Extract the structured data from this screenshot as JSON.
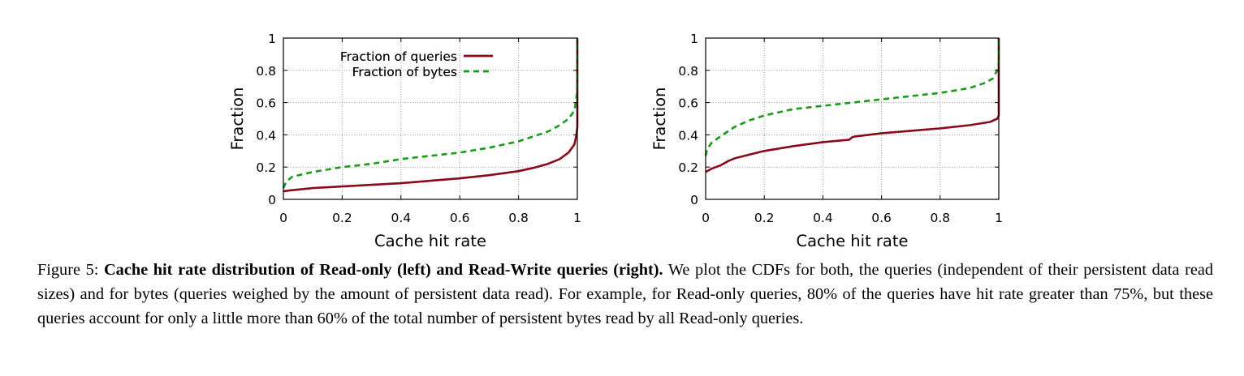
{
  "chart_data": [
    {
      "type": "line",
      "xlabel": "Cache hit rate",
      "ylabel": "Fraction",
      "xlim": [
        0,
        1
      ],
      "ylim": [
        0,
        1
      ],
      "xticks": [
        "0",
        "0.2",
        "0.4",
        "0.6",
        "0.8",
        "1"
      ],
      "yticks": [
        "0",
        "0.2",
        "0.4",
        "0.6",
        "0.8",
        "1"
      ],
      "grid": true,
      "legend_position": "top-center",
      "series": [
        {
          "name": "Fraction of queries",
          "color": "#8b0a1a",
          "style": "solid",
          "x": [
            0,
            0.02,
            0.1,
            0.2,
            0.3,
            0.4,
            0.5,
            0.6,
            0.7,
            0.8,
            0.85,
            0.9,
            0.94,
            0.97,
            0.99,
            0.997,
            1,
            1
          ],
          "y": [
            0.05,
            0.055,
            0.07,
            0.08,
            0.09,
            0.1,
            0.115,
            0.13,
            0.15,
            0.175,
            0.195,
            0.22,
            0.25,
            0.29,
            0.34,
            0.4,
            0.45,
            1.0
          ]
        },
        {
          "name": "Fraction of bytes",
          "color": "#1a9a1a",
          "style": "dashed",
          "x": [
            0,
            0.01,
            0.03,
            0.1,
            0.2,
            0.3,
            0.4,
            0.5,
            0.6,
            0.7,
            0.8,
            0.85,
            0.9,
            0.94,
            0.97,
            0.99,
            0.998,
            1,
            1
          ],
          "y": [
            0.07,
            0.11,
            0.14,
            0.17,
            0.2,
            0.22,
            0.25,
            0.27,
            0.29,
            0.32,
            0.36,
            0.39,
            0.42,
            0.46,
            0.5,
            0.55,
            0.65,
            0.72,
            1.0
          ]
        }
      ]
    },
    {
      "type": "line",
      "xlabel": "Cache hit rate",
      "ylabel": "Fraction",
      "xlim": [
        0,
        1
      ],
      "ylim": [
        0,
        1
      ],
      "xticks": [
        "0",
        "0.2",
        "0.4",
        "0.6",
        "0.8",
        "1"
      ],
      "yticks": [
        "0",
        "0.2",
        "0.4",
        "0.6",
        "0.8",
        "1"
      ],
      "grid": true,
      "legend_position": "top-center",
      "series": [
        {
          "name": "Fraction of queries",
          "color": "#8b0a1a",
          "style": "solid",
          "x": [
            0,
            0.02,
            0.05,
            0.08,
            0.1,
            0.2,
            0.3,
            0.4,
            0.49,
            0.5,
            0.51,
            0.6,
            0.7,
            0.8,
            0.9,
            0.97,
            0.995,
            1,
            1
          ],
          "y": [
            0.17,
            0.19,
            0.21,
            0.24,
            0.255,
            0.3,
            0.33,
            0.355,
            0.37,
            0.385,
            0.39,
            0.41,
            0.425,
            0.44,
            0.46,
            0.48,
            0.5,
            0.52,
            1.0
          ]
        },
        {
          "name": "Fraction of bytes",
          "color": "#1a9a1a",
          "style": "dashed",
          "x": [
            0,
            0.005,
            0.02,
            0.05,
            0.1,
            0.15,
            0.2,
            0.3,
            0.4,
            0.5,
            0.6,
            0.7,
            0.8,
            0.9,
            0.95,
            0.98,
            0.995,
            1,
            1
          ],
          "y": [
            0.27,
            0.31,
            0.35,
            0.39,
            0.45,
            0.49,
            0.52,
            0.56,
            0.58,
            0.6,
            0.62,
            0.64,
            0.66,
            0.69,
            0.72,
            0.75,
            0.8,
            0.85,
            1.0
          ]
        }
      ]
    }
  ],
  "caption": {
    "label": "Figure 5: ",
    "bold": "Cache hit rate distribution of Read-only (left) and Read-Write queries (right).",
    "body": " We plot the CDFs for both, the queries (independent of their persistent data read sizes) and for bytes (queries weighed by the amount of persistent data read). For example, for Read-only queries, 80% of the queries have hit rate greater than 75%, but these queries account for only a little more than 60% of the total number of persistent bytes read by all Read-only queries."
  }
}
